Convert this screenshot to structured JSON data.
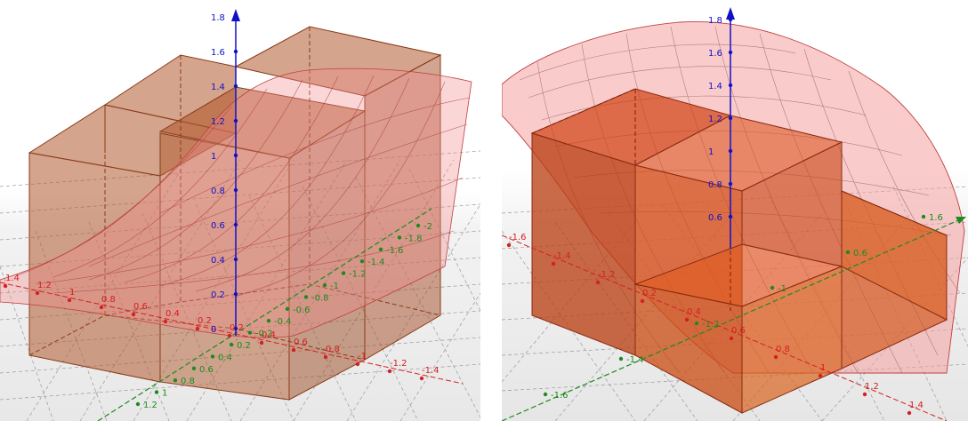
{
  "views": [
    {
      "name": "left",
      "z_ticks": [
        "1.8",
        "1.6",
        "1.4",
        "1.2",
        "1",
        "0.8",
        "0.6",
        "0.4",
        "0.2",
        "0"
      ],
      "x_ticks": [
        "1.4",
        "1.2",
        "1",
        "0.8",
        "0.6",
        "0.4",
        "0.2",
        "0.2",
        "0.4",
        "0.6",
        "0.8",
        "-1",
        "-1.2",
        "-1.4"
      ],
      "y_ticks": [
        "-2",
        "-1.8",
        "-1.6",
        "-1.4",
        "-1.2",
        "-1",
        "-0.8",
        "-0.6",
        "-0.4",
        "-0.2",
        "0.2",
        "0.4",
        "0.6",
        "0.8",
        "1",
        "1.2"
      ]
    },
    {
      "name": "right",
      "z_ticks": [
        "1.8",
        "1.6",
        "1.4",
        "1.2",
        "1",
        "0.8",
        "0.6"
      ],
      "x_ticks": [
        "-1.6",
        "-1.4",
        "-1.2",
        "0.2",
        "0.4",
        "0.6",
        "0.8",
        "1",
        "1.2",
        "1.4"
      ],
      "y_ticks": [
        "1.6",
        "0.6",
        "-1",
        "-1.2",
        "-1.4",
        "-1.6"
      ]
    }
  ],
  "colors": {
    "z_axis": "#1010c8",
    "x_axis": "#d42020",
    "y_axis": "#1e8a1e",
    "box_fill_left": "#b05a2e",
    "box_edge": "#8a3a18",
    "surface_fill": "#f08a8a",
    "surface_edge": "#c04040",
    "box_fill_right": "#d04010"
  }
}
